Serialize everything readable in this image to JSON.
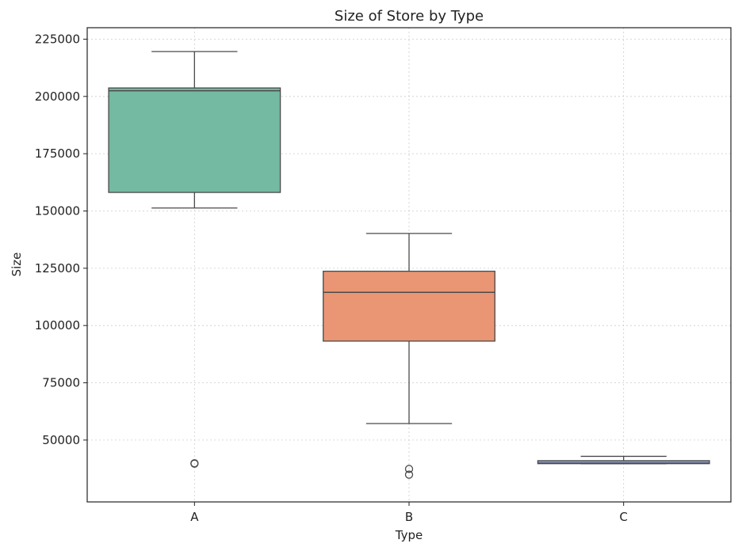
{
  "chart_data": {
    "type": "box",
    "title": "Size of Store by Type",
    "xlabel": "Type",
    "ylabel": "Size",
    "ylim": [
      23000,
      230000
    ],
    "yticks": [
      50000,
      75000,
      100000,
      125000,
      150000,
      175000,
      200000,
      225000
    ],
    "ytick_labels": [
      "50000",
      "75000",
      "100000",
      "125000",
      "150000",
      "175000",
      "200000",
      "225000"
    ],
    "grid": true,
    "categories": [
      "A",
      "B",
      "C"
    ],
    "boxes": [
      {
        "category": "A",
        "whisker_low": 151300,
        "q1": 158100,
        "median": 202500,
        "q3": 203700,
        "whisker_high": 219600,
        "outliers": [
          39700,
          39900
        ],
        "color": "#74b9a1"
      },
      {
        "category": "B",
        "whisker_low": 57200,
        "q1": 93200,
        "median": 114500,
        "q3": 123700,
        "whisker_high": 140200,
        "outliers": [
          34900,
          37400
        ],
        "color": "#ea9674"
      },
      {
        "category": "C",
        "whisker_low": 39700,
        "q1": 39700,
        "median": 39900,
        "q3": 41000,
        "whisker_high": 42900,
        "outliers": [],
        "color": "#8c9ac6"
      }
    ]
  }
}
